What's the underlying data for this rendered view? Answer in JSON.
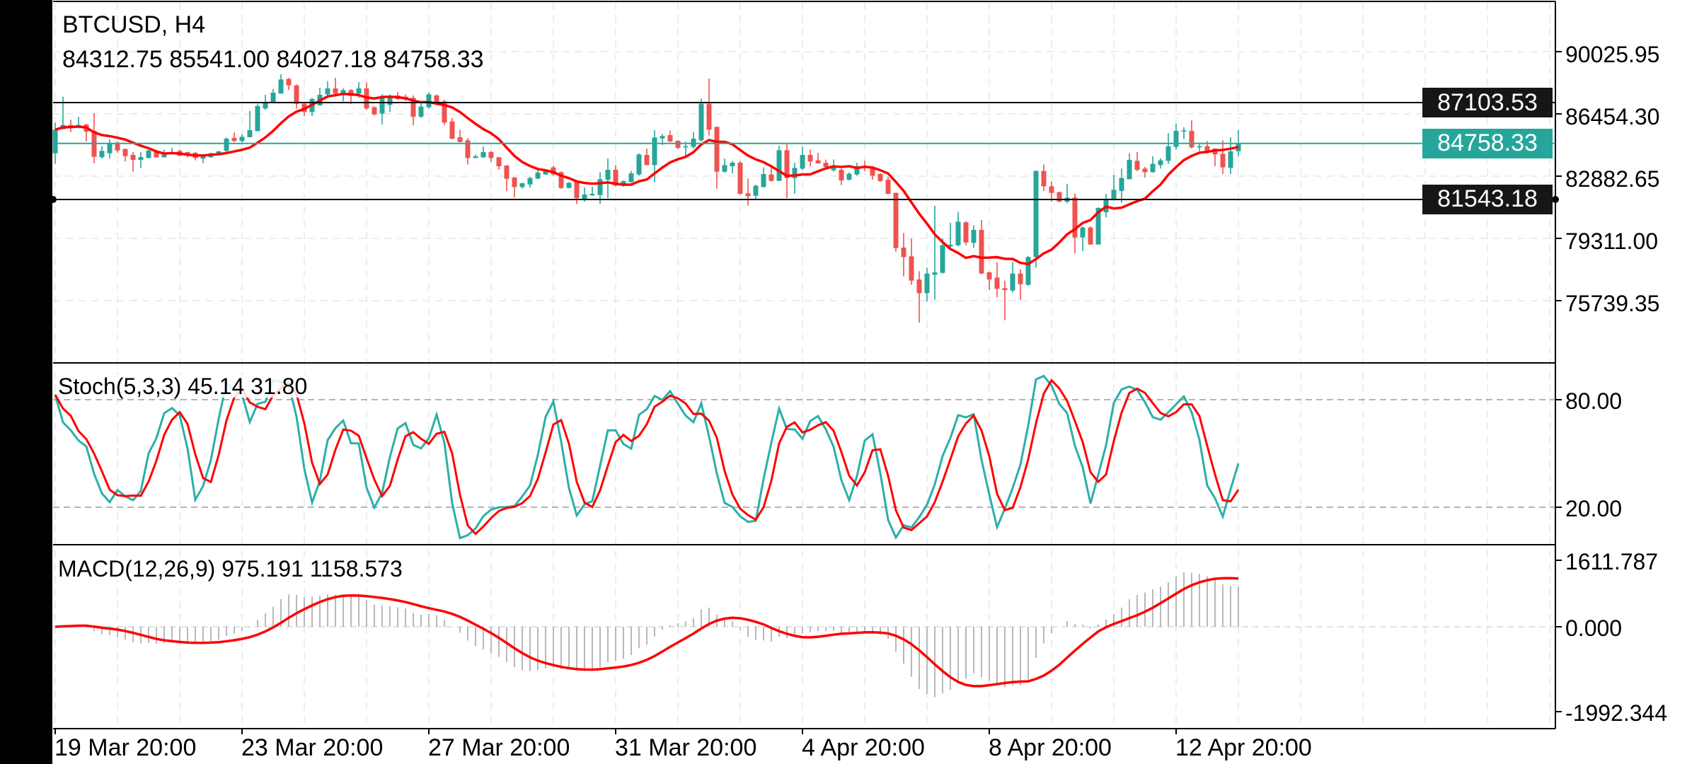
{
  "header": {
    "title": "BTCUSD, H4",
    "ohlc": "84312.75 85541.00 84027.18 84758.33"
  },
  "colors": {
    "bull": "#26a69a",
    "bear": "#ef5350",
    "moving_average": "#ff0000",
    "stoch_k": "#2bb0a8",
    "stoch_d": "#ff0000",
    "macd_histogram": "#b8b8b8",
    "macd_signal": "#ff0000",
    "level_line": "#000000",
    "current_price": "#26a69a"
  },
  "chart_data": {
    "type": "candlestick",
    "symbol": "BTCUSD",
    "timeframe": "H4",
    "x_tick_labels": [
      "19 Mar 20:00",
      "23 Mar 20:00",
      "27 Mar 20:00",
      "31 Mar 20:00",
      "4 Apr 20:00",
      "8 Apr 20:00",
      "12 Apr 20:00"
    ],
    "price_axis": {
      "ticks": [
        "90025.95",
        "86454.30",
        "82882.65",
        "79311.00",
        "75739.35"
      ]
    },
    "levels": [
      {
        "label": "87103.53",
        "value": 87103.53,
        "color": "#000000"
      },
      {
        "label": "84758.33",
        "value": 84758.33,
        "color": "#26a69a"
      },
      {
        "label": "81543.18",
        "value": 81543.18,
        "color": "#000000"
      }
    ],
    "candles_ohlc": [
      [
        84194,
        85954,
        83586,
        85547
      ],
      [
        85575,
        87442,
        85575,
        85818
      ],
      [
        85818,
        86116,
        85412,
        85737
      ],
      [
        85737,
        86292,
        85615,
        85818
      ],
      [
        85845,
        85886,
        84871,
        85439
      ],
      [
        85480,
        86495,
        83626,
        83992
      ],
      [
        83965,
        84600,
        83897,
        84330
      ],
      [
        84194,
        85006,
        83897,
        84736
      ],
      [
        84803,
        84871,
        84222,
        84357
      ],
      [
        84438,
        84465,
        83721,
        84032
      ],
      [
        84100,
        84262,
        83139,
        83816
      ],
      [
        83816,
        84262,
        83356,
        83978
      ],
      [
        83924,
        84398,
        83897,
        84357
      ],
      [
        84330,
        84380,
        83940,
        83965
      ],
      [
        83965,
        84398,
        83950,
        84222
      ],
      [
        84194,
        84506,
        84127,
        84262
      ],
      [
        84330,
        84398,
        84032,
        84059
      ],
      [
        84262,
        84290,
        83950,
        84100
      ],
      [
        84222,
        84262,
        83789,
        83924
      ],
      [
        83883,
        84059,
        83626,
        84019
      ],
      [
        83965,
        84230,
        83940,
        84194
      ],
      [
        84194,
        84340,
        84170,
        84303
      ],
      [
        84330,
        85101,
        84262,
        85033
      ],
      [
        85074,
        85385,
        84844,
        84898
      ],
      [
        84898,
        85277,
        84803,
        85142
      ],
      [
        85115,
        86630,
        85115,
        85520
      ],
      [
        85466,
        87036,
        85466,
        86901
      ],
      [
        86765,
        87550,
        86698,
        87104
      ],
      [
        87131,
        87875,
        87131,
        87672
      ],
      [
        87618,
        88727,
        87618,
        88429
      ],
      [
        88456,
        88524,
        87821,
        88091
      ],
      [
        88091,
        88145,
        86765,
        87036
      ],
      [
        87036,
        87104,
        86332,
        86562
      ],
      [
        86562,
        87374,
        86332,
        87306
      ],
      [
        86941,
        87956,
        86928,
        87550
      ],
      [
        87577,
        88321,
        87509,
        87915
      ],
      [
        87915,
        88524,
        87442,
        87618
      ],
      [
        87618,
        87915,
        87171,
        87821
      ],
      [
        87821,
        87875,
        87009,
        87482
      ],
      [
        87618,
        88281,
        87374,
        87915
      ],
      [
        87915,
        88254,
        86698,
        86765
      ],
      [
        86833,
        86900,
        86359,
        86427
      ],
      [
        86468,
        87577,
        85845,
        87442
      ],
      [
        86968,
        87577,
        86562,
        87442
      ],
      [
        87509,
        87712,
        87239,
        87306
      ],
      [
        87442,
        87577,
        87198,
        87279
      ],
      [
        87374,
        87509,
        85791,
        86292
      ],
      [
        86292,
        87036,
        86224,
        86873
      ],
      [
        86833,
        87685,
        86765,
        87577
      ],
      [
        87509,
        87577,
        86968,
        87036
      ],
      [
        87171,
        87279,
        85818,
        85954
      ],
      [
        86021,
        86224,
        85006,
        85033
      ],
      [
        85115,
        85547,
        84830,
        84844
      ],
      [
        84939,
        85074,
        83545,
        83924
      ],
      [
        83924,
        84127,
        83924,
        84019
      ],
      [
        83965,
        84600,
        83924,
        84262
      ],
      [
        84262,
        84330,
        83694,
        83924
      ],
      [
        83965,
        83992,
        83247,
        83450
      ],
      [
        83491,
        83518,
        82030,
        82733
      ],
      [
        82801,
        82842,
        81651,
        82260
      ],
      [
        82260,
        82503,
        82165,
        82476
      ],
      [
        82409,
        82842,
        82233,
        82774
      ],
      [
        82747,
        83247,
        82706,
        83085
      ],
      [
        82977,
        83250,
        82950,
        83180
      ],
      [
        83383,
        83477,
        82909,
        82977
      ],
      [
        83112,
        83150,
        82150,
        82206
      ],
      [
        82206,
        82540,
        82180,
        82503
      ],
      [
        82571,
        82600,
        81286,
        81624
      ],
      [
        81556,
        82233,
        81421,
        81827
      ],
      [
        81786,
        82273,
        81732,
        81867
      ],
      [
        81800,
        83112,
        81286,
        82706
      ],
      [
        82679,
        83897,
        81624,
        83247
      ],
      [
        83247,
        83518,
        82300,
        82341
      ],
      [
        82436,
        82625,
        82273,
        82598
      ],
      [
        82544,
        83180,
        82503,
        83045
      ],
      [
        82977,
        84194,
        82909,
        84127
      ],
      [
        84100,
        84465,
        83518,
        83518
      ],
      [
        83518,
        85520,
        82544,
        85101
      ],
      [
        85047,
        85304,
        84668,
        85182
      ],
      [
        85236,
        85507,
        84830,
        84871
      ],
      [
        84912,
        84940,
        84438,
        84506
      ],
      [
        84533,
        84871,
        84059,
        84600
      ],
      [
        84560,
        85412,
        84465,
        85033
      ],
      [
        84939,
        87334,
        84871,
        87036
      ],
      [
        87036,
        88483,
        85209,
        85547
      ],
      [
        85710,
        85710,
        82165,
        83139
      ],
      [
        83139,
        83883,
        83085,
        83518
      ],
      [
        83450,
        83748,
        83045,
        83653
      ],
      [
        83653,
        83748,
        81827,
        81867
      ],
      [
        81894,
        82747,
        81191,
        81732
      ],
      [
        81759,
        82395,
        81556,
        82327
      ],
      [
        82260,
        83383,
        82233,
        83004
      ],
      [
        82977,
        83356,
        82571,
        82612
      ],
      [
        82612,
        84627,
        82598,
        84370
      ],
      [
        84370,
        84709,
        81624,
        82774
      ],
      [
        82774,
        83653,
        81867,
        83356
      ],
      [
        83315,
        84573,
        83247,
        84100
      ],
      [
        84100,
        84398,
        83450,
        83721
      ],
      [
        83789,
        84222,
        83600,
        83613
      ],
      [
        83653,
        83829,
        83247,
        83410
      ],
      [
        83220,
        83843,
        83139,
        83491
      ],
      [
        83247,
        83315,
        82368,
        82639
      ],
      [
        82679,
        83112,
        82639,
        83018
      ],
      [
        82977,
        83653,
        82909,
        83450
      ],
      [
        83477,
        83762,
        83180,
        83383
      ],
      [
        83342,
        83450,
        82679,
        82909
      ],
      [
        83004,
        83045,
        82571,
        82598
      ],
      [
        82679,
        82842,
        81854,
        81867
      ],
      [
        81921,
        81950,
        78539,
        78756
      ],
      [
        78783,
        79621,
        77132,
        78241
      ],
      [
        78282,
        79297,
        76645,
        76888
      ],
      [
        76956,
        77430,
        74480,
        76171
      ],
      [
        76171,
        77633,
        75698,
        77294
      ],
      [
        77227,
        81178,
        75806,
        77362
      ],
      [
        77335,
        79324,
        77294,
        78918
      ],
      [
        78850,
        80203,
        78783,
        78945
      ],
      [
        78918,
        80839,
        78850,
        80271
      ],
      [
        80230,
        80298,
        78918,
        79080
      ],
      [
        79053,
        80068,
        78783,
        79797
      ],
      [
        79797,
        80366,
        77267,
        77294
      ],
      [
        77362,
        77400,
        76347,
        76956
      ],
      [
        77064,
        77944,
        75941,
        76415
      ],
      [
        76455,
        76888,
        74615,
        76347
      ],
      [
        76320,
        77944,
        76212,
        77294
      ],
      [
        77294,
        77538,
        75779,
        76685
      ],
      [
        76645,
        78309,
        76600,
        78241
      ],
      [
        78241,
        83207,
        77633,
        83180
      ],
      [
        83180,
        83559,
        82030,
        82300
      ],
      [
        82300,
        82571,
        81421,
        81921
      ],
      [
        81962,
        82000,
        81380,
        81421
      ],
      [
        81421,
        82436,
        81326,
        81651
      ],
      [
        81651,
        81894,
        78444,
        79364
      ],
      [
        79364,
        80000,
        78579,
        79932
      ],
      [
        79932,
        80000,
        78958,
        78958
      ],
      [
        78958,
        81100,
        78958,
        81056
      ],
      [
        80812,
        81867,
        80514,
        81556
      ],
      [
        81556,
        82950,
        81488,
        82097
      ],
      [
        82030,
        83315,
        81353,
        82774
      ],
      [
        82706,
        84194,
        82706,
        83816
      ],
      [
        83762,
        84262,
        83153,
        83247
      ],
      [
        83315,
        83410,
        82801,
        83112
      ],
      [
        83112,
        84019,
        83085,
        83586
      ],
      [
        83518,
        83897,
        83315,
        83789
      ],
      [
        83762,
        85344,
        83586,
        84600
      ],
      [
        84560,
        85886,
        84397,
        85480
      ],
      [
        85439,
        85683,
        85006,
        85507
      ],
      [
        85480,
        86089,
        84465,
        84533
      ],
      [
        84533,
        84803,
        84330,
        84600
      ],
      [
        84600,
        84898,
        84194,
        84262
      ],
      [
        84465,
        84490,
        83450,
        84127
      ],
      [
        84167,
        84938,
        83004,
        83383
      ],
      [
        83356,
        85114,
        83004,
        84303
      ],
      [
        84312.75,
        85541.0,
        84027.18,
        84758.33
      ]
    ],
    "stochastic": {
      "label": "Stoch(5,3,3) 45.14 31.80",
      "k": 45.14,
      "d": 31.8,
      "axis_ticks": [
        "80.00",
        "20.00"
      ]
    },
    "macd": {
      "label": "MACD(12,26,9) 975.191 1158.573",
      "macd": 975.191,
      "signal": 1158.573,
      "axis_ticks": [
        "1611.787",
        "0.000",
        "-1992.344"
      ]
    },
    "grid": true
  }
}
